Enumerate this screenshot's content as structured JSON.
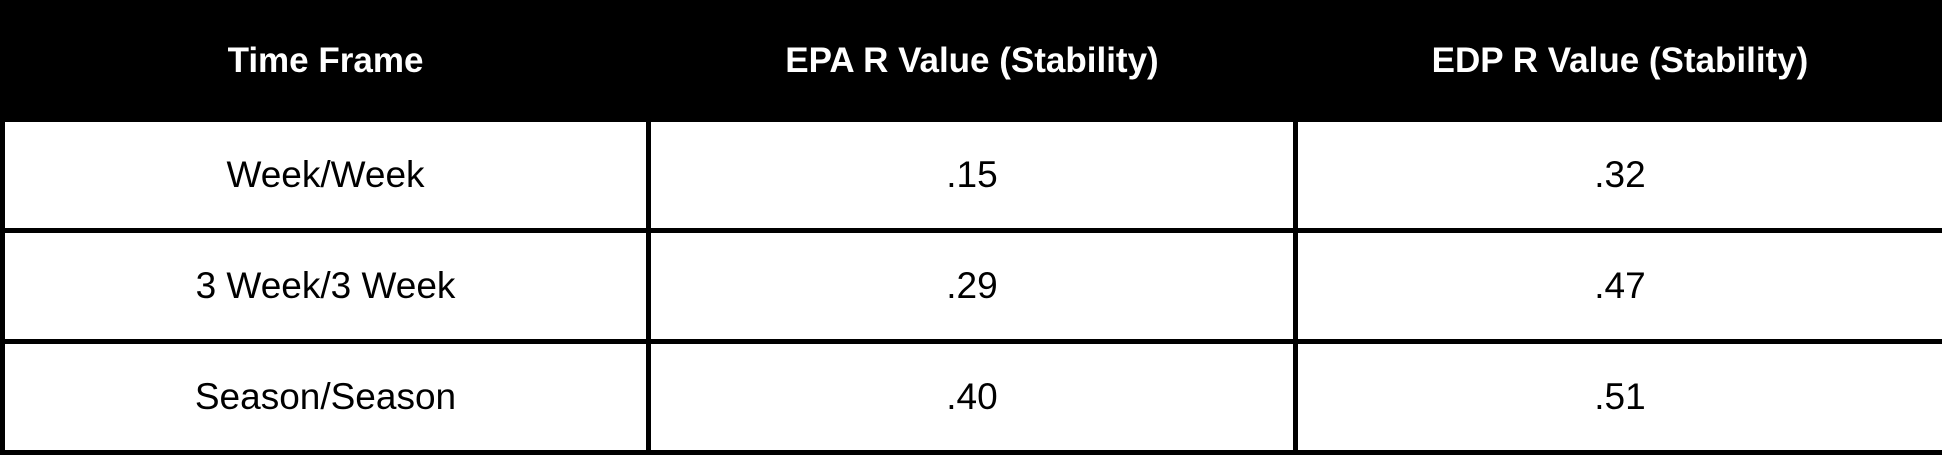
{
  "table": {
    "header": [
      "Time Frame",
      "EPA R Value (Stability)",
      "EDP R Value (Stability)"
    ],
    "rows": [
      [
        "Week/Week",
        ".15",
        ".32"
      ],
      [
        "3 Week/3 Week",
        ".29",
        ".47"
      ],
      [
        "Season/Season",
        ".40",
        ".51"
      ]
    ]
  }
}
